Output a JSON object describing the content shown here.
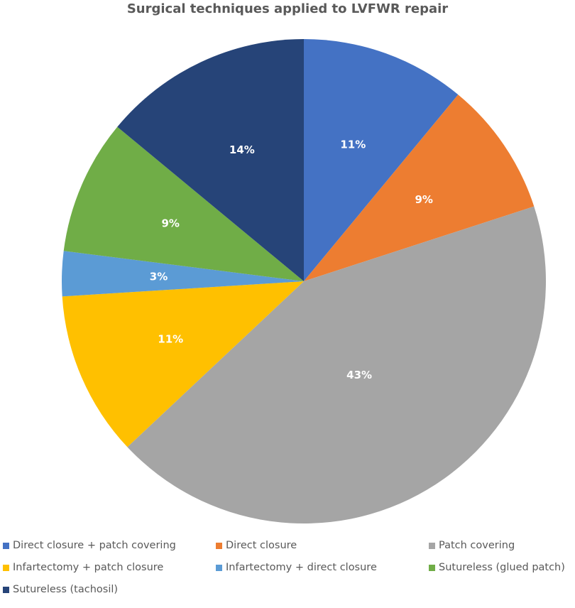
{
  "chart_data": {
    "type": "pie",
    "title": "Surgical techniques applied to LVFWR repair",
    "slices": [
      {
        "name": "Direct closure + patch covering",
        "value": 11,
        "label": "11%",
        "color": "#4472c4"
      },
      {
        "name": "Direct closure",
        "value": 9,
        "label": "9%",
        "color": "#ed7d31"
      },
      {
        "name": "Patch covering",
        "value": 43,
        "label": "43%",
        "color": "#a5a5a5"
      },
      {
        "name": "Infartectomy + patch closure",
        "value": 11,
        "label": "11%",
        "color": "#ffc000"
      },
      {
        "name": "Infartectomy + direct closure",
        "value": 3,
        "label": "3%",
        "color": "#5b9bd5"
      },
      {
        "name": "Sutureless (glued patch)",
        "value": 9,
        "label": "9%",
        "color": "#70ad47"
      },
      {
        "name": "Sutureless (tachosil)",
        "value": 14,
        "label": "14%",
        "color": "#264478"
      }
    ],
    "legend_position": "bottom"
  }
}
